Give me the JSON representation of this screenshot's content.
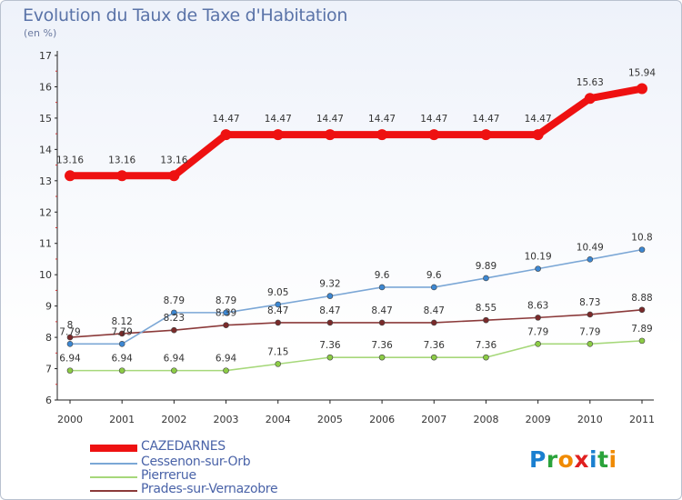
{
  "chart_data": {
    "type": "line",
    "title": "Evolution du Taux de Taxe d'Habitation",
    "subtitle": "(en %)",
    "x": [
      "2000",
      "2001",
      "2002",
      "2003",
      "2004",
      "2005",
      "2006",
      "2007",
      "2008",
      "2009",
      "2010",
      "2011"
    ],
    "ylim": [
      6,
      17
    ],
    "yticks": [
      "6",
      "7",
      "8",
      "9",
      "10",
      "11",
      "12",
      "13",
      "14",
      "15",
      "16",
      "17"
    ],
    "grid": false,
    "legend_position": "bottom-left",
    "series": [
      {
        "name": "CAZEDARNES",
        "color": "#ee1111",
        "values": [
          13.16,
          13.16,
          13.16,
          14.47,
          14.47,
          14.47,
          14.47,
          14.47,
          14.47,
          14.47,
          15.63,
          15.94
        ],
        "labels": [
          "13.16",
          "13.16",
          "13.16",
          "14.47",
          "14.47",
          "14.47",
          "14.47",
          "14.47",
          "14.47",
          "14.47",
          "15.63",
          "15.94"
        ]
      },
      {
        "name": "Cessenon-sur-Orb",
        "color": "#7ba7d6",
        "marker": "#3c87d2",
        "values": [
          7.79,
          7.79,
          8.79,
          8.79,
          9.05,
          9.32,
          9.6,
          9.6,
          9.89,
          10.19,
          10.49,
          10.8
        ],
        "labels": [
          "7.79",
          "7.79",
          "8.79",
          "8.79",
          "9.05",
          "9.32",
          "9.6",
          "9.6",
          "9.89",
          "10.19",
          "10.49",
          "10.8"
        ]
      },
      {
        "name": "Pierrerue",
        "color": "#a6d87a",
        "marker": "#8ccc45",
        "values": [
          6.94,
          6.94,
          6.94,
          6.94,
          7.15,
          7.36,
          7.36,
          7.36,
          7.36,
          7.79,
          7.79,
          7.89
        ],
        "labels": [
          "6.94",
          "6.94",
          "6.94",
          "6.94",
          "7.15",
          "7.36",
          "7.36",
          "7.36",
          "7.36",
          "7.79",
          "7.79",
          "7.89"
        ]
      },
      {
        "name": "Prades-sur-Vernazobre",
        "color": "#8b3a3a",
        "marker": "#7a2a2a",
        "values": [
          8,
          8.12,
          8.23,
          8.39,
          8.47,
          8.47,
          8.47,
          8.47,
          8.55,
          8.63,
          8.73,
          8.88
        ],
        "labels": [
          "8",
          "8.12",
          "8.23",
          "8.39",
          "8.47",
          "8.47",
          "8.47",
          "8.47",
          "8.55",
          "8.63",
          "8.73",
          "8.88"
        ]
      }
    ]
  },
  "logo": {
    "text": "Proxiti",
    "letters": [
      "P",
      "r",
      "o",
      "x",
      "i",
      "t",
      "i"
    ],
    "colors": [
      "#1a7fd0",
      "#2aa33b",
      "#f08a00",
      "#e02020",
      "#1a7fd0",
      "#2aa33b",
      "#f08a00"
    ]
  }
}
